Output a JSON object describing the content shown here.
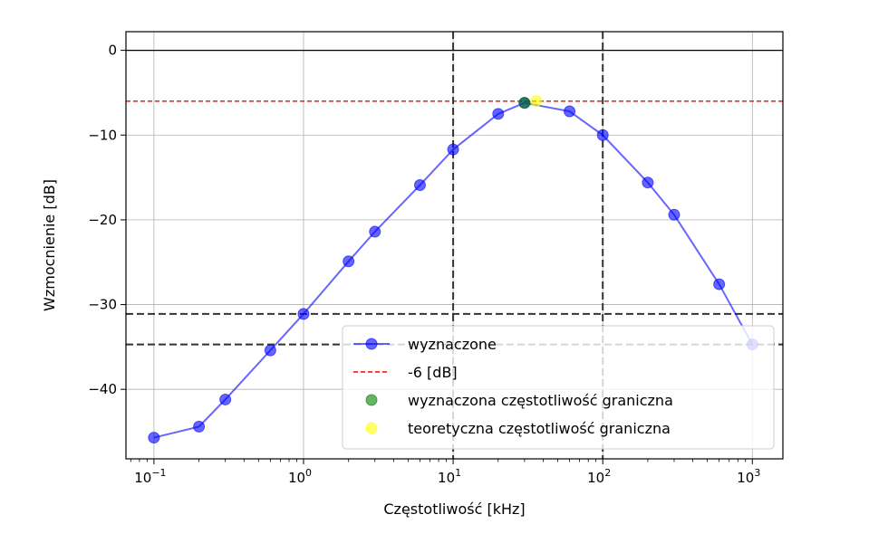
{
  "chart_data": {
    "type": "line",
    "xscale": "log",
    "xlim": [
      0.065,
      1600
    ],
    "ylim": [
      -48.2,
      2.2
    ],
    "xlabel": "Częstotliwość [kHz]",
    "ylabel": "Wzmocnienie [dB]",
    "grid": true,
    "legend_position": "lower-right",
    "x_ticks": [
      {
        "value": 0.1,
        "base": "10",
        "exp": "−1"
      },
      {
        "value": 1,
        "base": "10",
        "exp": "0"
      },
      {
        "value": 10,
        "base": "10",
        "exp": "1"
      },
      {
        "value": 100,
        "base": "10",
        "exp": "2"
      },
      {
        "value": 1000,
        "base": "10",
        "exp": "3"
      }
    ],
    "y_ticks": [
      {
        "value": 0,
        "label": "0"
      },
      {
        "value": -10,
        "label": "−10"
      },
      {
        "value": -20,
        "label": "−20"
      },
      {
        "value": -30,
        "label": "−30"
      },
      {
        "value": -40,
        "label": "−40"
      }
    ],
    "series": [
      {
        "name": "wyznaczone",
        "color": "#0000ff",
        "x": [
          0.1,
          0.2,
          0.3,
          0.6,
          1,
          2,
          3,
          6,
          10,
          20,
          30,
          60,
          100,
          200,
          300,
          600,
          1000
        ],
        "y": [
          -45.7,
          -44.4,
          -41.2,
          -35.4,
          -31.1,
          -24.9,
          -21.4,
          -15.9,
          -11.7,
          -7.5,
          -6.2,
          -7.2,
          -10.0,
          -15.6,
          -19.4,
          -27.6,
          -34.7
        ]
      }
    ],
    "reference_lines": [
      {
        "name": "-6 [dB]",
        "orientation": "horizontal",
        "value": -6,
        "color": "#ff0000",
        "style": "dashed"
      },
      {
        "orientation": "horizontal",
        "value": 0,
        "color": "#000000",
        "style": "solid"
      },
      {
        "orientation": "horizontal",
        "value": -31.1,
        "color": "#333333",
        "style": "dashed"
      },
      {
        "orientation": "horizontal",
        "value": -34.7,
        "color": "#333333",
        "style": "dashed"
      },
      {
        "orientation": "vertical",
        "value": 10,
        "color": "#333333",
        "style": "dashed"
      },
      {
        "orientation": "vertical",
        "value": 100,
        "color": "#333333",
        "style": "dashed"
      }
    ],
    "special_points": [
      {
        "name": "wyznaczona częstotliwość graniczna",
        "x": 30,
        "y": -6.2,
        "color": "#008000"
      },
      {
        "name": "teoretyczna częstotliwość graniczna",
        "x": 36,
        "y": -6.0,
        "color": "#ffff00"
      }
    ]
  }
}
